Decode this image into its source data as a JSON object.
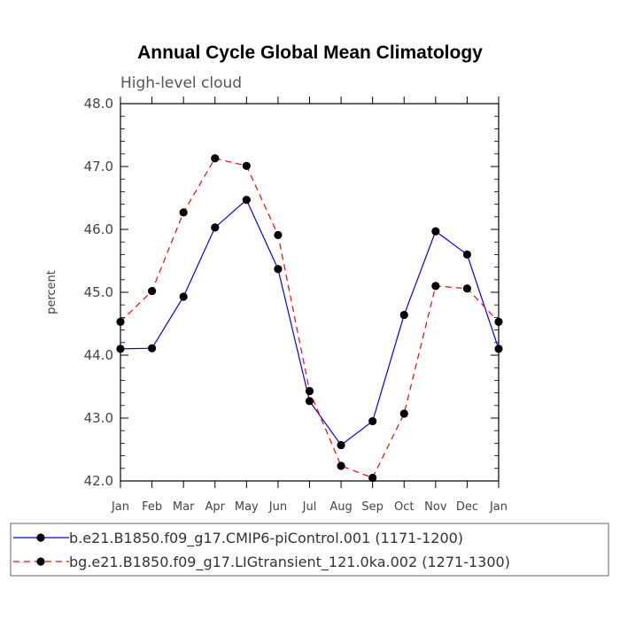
{
  "chart_data": {
    "type": "line",
    "title": "Annual Cycle Global Mean Climatology",
    "subtitle": "High-level cloud",
    "ylabel": "percent",
    "xlabel": "",
    "ylim": [
      42.0,
      48.0
    ],
    "yticks": [
      "42.0",
      "43.0",
      "44.0",
      "45.0",
      "46.0",
      "47.0",
      "48.0"
    ],
    "categories": [
      "Jan",
      "Feb",
      "Mar",
      "Apr",
      "May",
      "Jun",
      "Jul",
      "Aug",
      "Sep",
      "Oct",
      "Nov",
      "Dec",
      "Jan"
    ],
    "series": [
      {
        "name": "b.e21.B1850.f09_g17.CMIP6-piControl.001 (1171-1200)",
        "color": "#0000ff",
        "dash": "solid",
        "values": [
          44.1,
          44.11,
          44.93,
          46.03,
          46.47,
          45.37,
          43.27,
          42.57,
          42.95,
          44.64,
          45.97,
          45.6,
          44.1
        ]
      },
      {
        "name": "bg.e21.B1850.f09_g17.LIGtransient_121.0ka.002 (1271-1300)",
        "color": "#ff0000",
        "dash": "dashed",
        "values": [
          44.53,
          45.02,
          46.27,
          47.13,
          47.01,
          45.91,
          43.43,
          42.24,
          42.05,
          43.07,
          45.1,
          45.06,
          44.53
        ]
      }
    ]
  }
}
